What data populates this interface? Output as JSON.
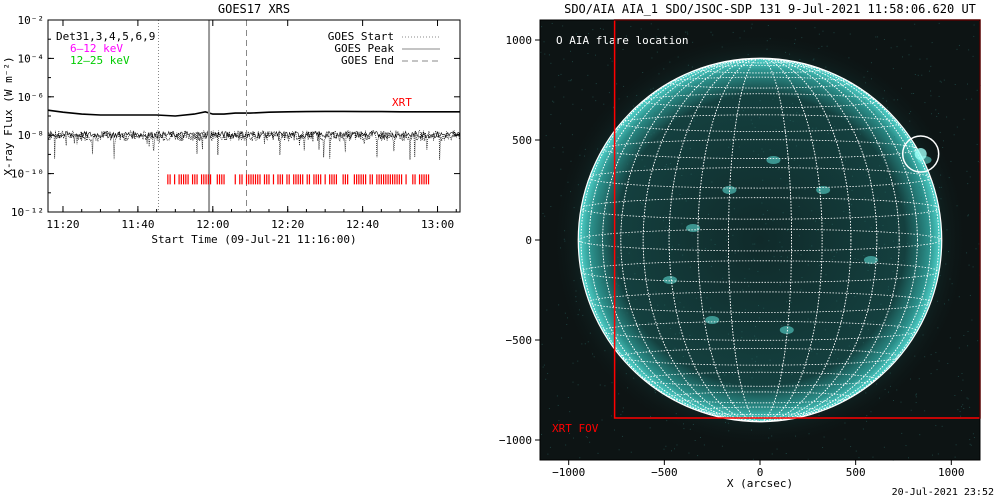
{
  "chart_data": [
    {
      "type": "line",
      "title": "GOES17 XRS",
      "xlabel": "Start Time (09-Jul-21 11:16:00)",
      "ylabel": "X-ray Flux (W m⁻²)",
      "x_ticks": [
        "11:20",
        "11:40",
        "12:00",
        "12:20",
        "12:40",
        "13:00"
      ],
      "x_tick_minutes": [
        20,
        40,
        60,
        80,
        100,
        120
      ],
      "xlim_minutes_after_11:00": [
        16,
        126
      ],
      "y_ticks": [
        "10⁻¹²",
        "10⁻¹⁰",
        "10⁻⁸",
        "10⁻⁶",
        "10⁻⁴",
        "10⁻²"
      ],
      "y_tick_exponents": [
        -12,
        -10,
        -8,
        -6,
        -4,
        -2
      ],
      "ylim_log10": [
        -12,
        -2
      ],
      "y_scale": "log",
      "channel_legend": {
        "det": {
          "text": "Det31,3,4,5,6,9",
          "color": "#000000"
        },
        "low": {
          "text": "6–12 keV",
          "color": "#ff00ff"
        },
        "high": {
          "text": "12–25 keV",
          "color": "#00cc00"
        }
      },
      "legend": {
        "start": "GOES Start",
        "peak": "GOES Peak",
        "end": "GOES End",
        "placement": "top-right"
      },
      "series": [
        {
          "color": "#000000",
          "style": "solid",
          "x_minutes": [
            16,
            20,
            25,
            30,
            35,
            40,
            45,
            50,
            55,
            58,
            60,
            63,
            66,
            70,
            75,
            80,
            85,
            90,
            95,
            100,
            105,
            110,
            115,
            120,
            126
          ],
          "log10_flux": [
            -6.7,
            -6.8,
            -6.9,
            -6.95,
            -6.95,
            -6.95,
            -6.95,
            -7.0,
            -6.9,
            -6.78,
            -6.9,
            -6.9,
            -6.85,
            -6.85,
            -6.8,
            -6.78,
            -6.77,
            -6.76,
            -6.76,
            -6.77,
            -6.77,
            -6.78,
            -6.78,
            -6.78,
            -6.78
          ]
        },
        {
          "color": "#000000",
          "style": "dotted-noisy",
          "level_log10": -8.0,
          "noise_span_log10": [
            -8.3,
            -7.75
          ],
          "dips_to_log10": -9.3
        }
      ],
      "markers": {
        "goes_start_min": 45.5,
        "goes_peak_min": 59,
        "goes_end_min": 69
      },
      "xrt_label": "XRT",
      "xrt_bar": {
        "color": "#ff0000",
        "from_min": 48,
        "to_min": 118,
        "log10_flux": -10.3
      }
    },
    {
      "type": "image",
      "title": "SDO/AIA AIA_1 SDO/JSOC-SDP 131  9-Jul-2021 11:58:06.620 UT",
      "xlabel": "X (arcsec)",
      "xlim": [
        -1150,
        1150
      ],
      "ylim": [
        -1100,
        1100
      ],
      "x_ticks": [
        -1000,
        -500,
        0,
        500,
        1000
      ],
      "y_ticks": [
        -1000,
        -500,
        0,
        500,
        1000
      ],
      "flare_legend": "O AIA flare location",
      "flare_location": {
        "x": 840,
        "y": 430
      },
      "xrt_fov_label": "XRT FOV",
      "xrt_fov": {
        "x0": -760,
        "x1": 1150,
        "y0": -890,
        "y1": 1100
      },
      "solar_radius_arcsec": 950
    }
  ],
  "footer": "20-Jul-2021 23:52"
}
